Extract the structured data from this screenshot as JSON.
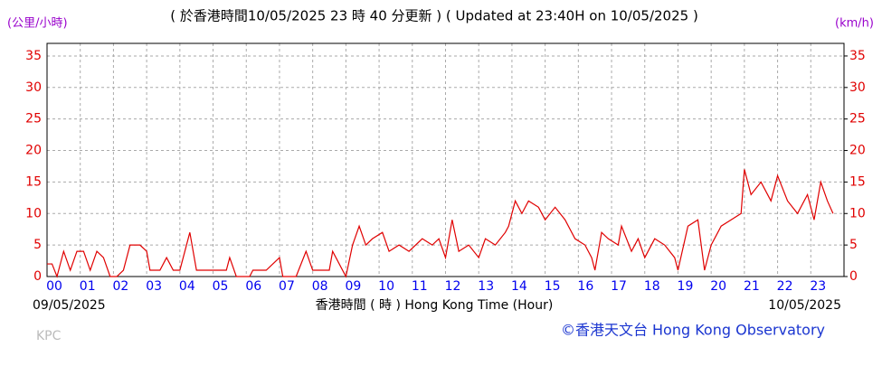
{
  "chart_data": {
    "type": "line",
    "title": "( 於香港時間10/05/2025 23 時 40 分更新 ) ( Updated at 23:40H on 10/05/2025 )",
    "y_label": "(公里/小時)",
    "y2_label": "(km/h)",
    "x_label": "香港時間 ( 時 )  Hong Kong Time (Hour)",
    "start_date": "09/05/2025",
    "end_date": "10/05/2025",
    "station": "KPC",
    "credit": "©香港天文台 Hong Kong Observatory",
    "color": "#e00000",
    "grid": true,
    "x": [
      0,
      0.15,
      0.3,
      0.5,
      0.7,
      0.9,
      1.1,
      1.3,
      1.5,
      1.7,
      1.9,
      2.1,
      2.3,
      2.5,
      2.8,
      3.0,
      3.1,
      3.4,
      3.6,
      3.8,
      4.0,
      4.3,
      4.5,
      5.0,
      5.4,
      5.5,
      5.7,
      6.1,
      6.2,
      6.6,
      7.0,
      7.1,
      7.5,
      7.8,
      8.0,
      8.5,
      8.6,
      9.0,
      9.2,
      9.4,
      9.6,
      9.8,
      10.1,
      10.3,
      10.6,
      10.9,
      11.3,
      11.6,
      11.8,
      12.0,
      12.2,
      12.4,
      12.7,
      13.0,
      13.2,
      13.5,
      13.8,
      13.9,
      14.1,
      14.3,
      14.5,
      14.8,
      15.0,
      15.3,
      15.6,
      15.9,
      16.2,
      16.4,
      16.5,
      16.7,
      16.9,
      17.2,
      17.3,
      17.6,
      17.8,
      18.0,
      18.3,
      18.6,
      18.9,
      19.0,
      19.3,
      19.6,
      19.8,
      20.0,
      20.3,
      20.6,
      20.9,
      21.0,
      21.2,
      21.5,
      21.8,
      22.0,
      22.3,
      22.6,
      22.9,
      23.1,
      23.3,
      23.5,
      23.67
    ],
    "values": [
      2,
      2,
      0,
      4,
      1,
      4,
      4,
      1,
      4,
      3,
      0,
      0,
      1,
      5,
      5,
      4,
      1,
      1,
      3,
      1,
      1,
      7,
      1,
      1,
      1,
      3,
      0,
      0,
      1,
      1,
      3,
      0,
      0,
      4,
      1,
      1,
      4,
      0,
      5,
      8,
      5,
      6,
      7,
      4,
      5,
      4,
      6,
      5,
      6,
      3,
      9,
      4,
      5,
      3,
      6,
      5,
      7,
      8,
      12,
      10,
      12,
      11,
      9,
      11,
      9,
      6,
      5,
      3,
      1,
      7,
      6,
      5,
      8,
      4,
      6,
      3,
      6,
      5,
      3,
      1,
      8,
      9,
      1,
      5,
      8,
      9,
      10,
      17,
      13,
      15,
      12,
      16,
      12,
      10,
      13,
      9,
      15,
      12,
      10
    ],
    "xlim": [
      0,
      24
    ],
    "xticks": [
      {
        "value": 0,
        "label": "00"
      },
      {
        "value": 1,
        "label": "01"
      },
      {
        "value": 2,
        "label": "02"
      },
      {
        "value": 3,
        "label": "03"
      },
      {
        "value": 4,
        "label": "04"
      },
      {
        "value": 5,
        "label": "05"
      },
      {
        "value": 6,
        "label": "06"
      },
      {
        "value": 7,
        "label": "07"
      },
      {
        "value": 8,
        "label": "08"
      },
      {
        "value": 9,
        "label": "09"
      },
      10,
      11,
      12,
      13,
      14,
      15,
      16,
      17,
      18,
      19,
      20,
      21,
      22,
      23
    ],
    "ylim": [
      0,
      37
    ],
    "yticks": [
      0,
      5,
      10,
      15,
      20,
      25,
      30,
      35
    ],
    "y2lim": [
      0,
      37
    ],
    "y2ticks": [
      0,
      5,
      10,
      15,
      20,
      25,
      30,
      35
    ]
  }
}
